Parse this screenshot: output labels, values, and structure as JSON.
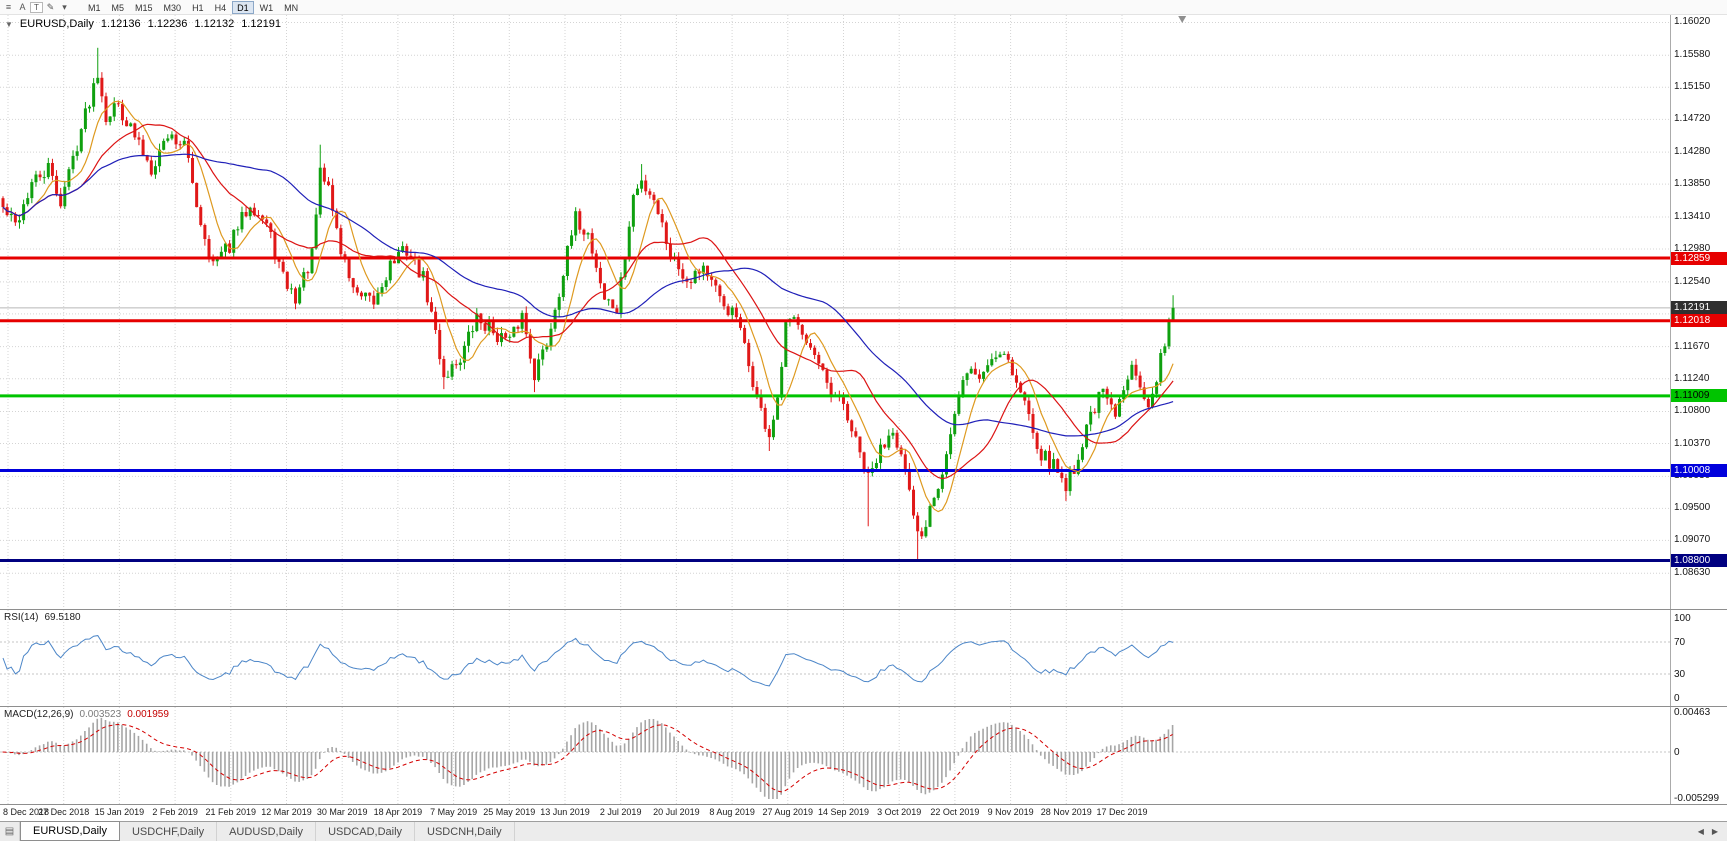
{
  "icons": {
    "menu": "≡",
    "cursor": "A",
    "text": "T",
    "draw": "✎",
    "dropdown": "▾",
    "collapse": "▼",
    "window_list": "▤",
    "tab_scroll_left": "◀",
    "tab_scroll_right": "▶"
  },
  "toolbar": {
    "timeframes": [
      {
        "label": "M1",
        "active": false
      },
      {
        "label": "M5",
        "active": false
      },
      {
        "label": "M15",
        "active": false
      },
      {
        "label": "M30",
        "active": false
      },
      {
        "label": "H1",
        "active": false
      },
      {
        "label": "H4",
        "active": false
      },
      {
        "label": "D1",
        "active": true
      },
      {
        "label": "W1",
        "active": false
      },
      {
        "label": "MN",
        "active": false
      }
    ]
  },
  "chart_data": {
    "type": "candlestick",
    "symbol": "EURUSD,Daily",
    "ohlc_display": {
      "open": "1.12136",
      "high": "1.12236",
      "low": "1.12132",
      "close": "1.12191"
    },
    "y_range": [
      1.0815,
      1.1612
    ],
    "price_axis_ticks": [
      "1.16020",
      "1.15580",
      "1.15150",
      "1.14720",
      "1.14280",
      "1.13850",
      "1.13410",
      "1.12980",
      "1.12540",
      "1.12110",
      "1.11670",
      "1.11240",
      "1.10800",
      "1.10370",
      "1.09930",
      "1.09500",
      "1.09070",
      "1.08630"
    ],
    "date_labels": [
      "8 Dec 2018",
      "27 Dec 2018",
      "15 Jan 2019",
      "2 Feb 2019",
      "21 Feb 2019",
      "12 Mar 2019",
      "30 Mar 2019",
      "18 Apr 2019",
      "7 May 2019",
      "25 May 2019",
      "13 Jun 2019",
      "2 Jul 2019",
      "20 Jul 2019",
      "8 Aug 2019",
      "27 Aug 2019",
      "14 Sep 2019",
      "3 Oct 2019",
      "22 Oct 2019",
      "9 Nov 2019",
      "28 Nov 2019",
      "17 Dec 2019"
    ],
    "levels": [
      {
        "price": 1.12859,
        "label": "1.12859",
        "color": "#E60000",
        "badge_text": "#FFFFFF",
        "thickness": 3
      },
      {
        "price": 1.12018,
        "label": "1.12018",
        "color": "#E60000",
        "badge_text": "#FFFFFF",
        "thickness": 3
      },
      {
        "price": 1.11009,
        "label": "1.11009",
        "color": "#00C400",
        "badge_text": "#000000",
        "thickness": 3
      },
      {
        "price": 1.10008,
        "label": "1.10008",
        "color": "#0000DC",
        "badge_text": "#FFFFFF",
        "thickness": 3
      },
      {
        "price": 1.088,
        "label": "1.08800",
        "color": "#000080",
        "badge_text": "#FFFFFF",
        "thickness": 3
      }
    ],
    "current_price": {
      "price": 1.12191,
      "label": "1.12191",
      "line_color": "#B8B8B8",
      "badge_bg": "#2F2F2F",
      "badge_text": "#FFFFFF"
    },
    "candles": {
      "count": 285,
      "seed": 42,
      "noise": 0.0011,
      "wick": 0.0009,
      "up_color": "#0FA00F",
      "down_color": "#E01818",
      "last_close": 1.12191,
      "close_waypoints": [
        [
          0,
          1.1352
        ],
        [
          3,
          1.133
        ],
        [
          7,
          1.1385
        ],
        [
          11,
          1.1405
        ],
        [
          14,
          1.1362
        ],
        [
          18,
          1.144
        ],
        [
          23,
          1.1538
        ],
        [
          25,
          1.1478
        ],
        [
          28,
          1.1492
        ],
        [
          32,
          1.1448
        ],
        [
          36,
          1.1408
        ],
        [
          40,
          1.1452
        ],
        [
          44,
          1.1438
        ],
        [
          48,
          1.1335
        ],
        [
          51,
          1.1278
        ],
        [
          55,
          1.1302
        ],
        [
          60,
          1.1362
        ],
        [
          64,
          1.133
        ],
        [
          68,
          1.1258
        ],
        [
          71,
          1.1232
        ],
        [
          75,
          1.1288
        ],
        [
          77,
          1.1398
        ],
        [
          79,
          1.1382
        ],
        [
          82,
          1.1295
        ],
        [
          86,
          1.1232
        ],
        [
          90,
          1.1225
        ],
        [
          94,
          1.1278
        ],
        [
          98,
          1.1298
        ],
        [
          102,
          1.1258
        ],
        [
          105,
          1.1185
        ],
        [
          107,
          1.1128
        ],
        [
          111,
          1.1152
        ],
        [
          115,
          1.1205
        ],
        [
          119,
          1.1188
        ],
        [
          123,
          1.1172
        ],
        [
          126,
          1.121
        ],
        [
          129,
          1.1132
        ],
        [
          132,
          1.1172
        ],
        [
          136,
          1.1268
        ],
        [
          139,
          1.1338
        ],
        [
          142,
          1.1318
        ],
        [
          146,
          1.1232
        ],
        [
          149,
          1.1215
        ],
        [
          151,
          1.1288
        ],
        [
          153,
          1.1368
        ],
        [
          155,
          1.1388
        ],
        [
          158,
          1.1368
        ],
        [
          162,
          1.1292
        ],
        [
          166,
          1.1258
        ],
        [
          170,
          1.1276
        ],
        [
          174,
          1.1228
        ],
        [
          178,
          1.1206
        ],
        [
          181,
          1.1142
        ],
        [
          184,
          1.1078
        ],
        [
          186,
          1.1048
        ],
        [
          188,
          1.1088
        ],
        [
          190,
          1.1192
        ],
        [
          193,
          1.1206
        ],
        [
          197,
          1.1152
        ],
        [
          201,
          1.1098
        ],
        [
          204,
          1.1088
        ],
        [
          207,
          1.1038
        ],
        [
          210,
          1.0988
        ],
        [
          213,
          1.1028
        ],
        [
          216,
          1.1062
        ],
        [
          219,
          1.0998
        ],
        [
          221,
          1.0932
        ],
        [
          223,
          1.0908
        ],
        [
          225,
          1.0958
        ],
        [
          228,
          1.1
        ],
        [
          231,
          1.1072
        ],
        [
          234,
          1.1138
        ],
        [
          237,
          1.1125
        ],
        [
          240,
          1.1152
        ],
        [
          243,
          1.1165
        ],
        [
          246,
          1.1118
        ],
        [
          249,
          1.1078
        ],
        [
          252,
          1.1022
        ],
        [
          255,
          1.1008
        ],
        [
          258,
          1.0982
        ],
        [
          261,
          1.1018
        ],
        [
          264,
          1.1078
        ],
        [
          267,
          1.1105
        ],
        [
          270,
          1.1072
        ],
        [
          272,
          1.1108
        ],
        [
          274,
          1.1152
        ],
        [
          276,
          1.1122
        ],
        [
          278,
          1.1082
        ],
        [
          280,
          1.1118
        ],
        [
          282,
          1.1178
        ],
        [
          283,
          1.1205
        ],
        [
          284,
          1.12191
        ]
      ],
      "wick_overrides": [
        {
          "i": 23,
          "high": 1.1568
        },
        {
          "i": 77,
          "high": 1.1438
        },
        {
          "i": 107,
          "low": 1.111
        },
        {
          "i": 129,
          "low": 1.1106
        },
        {
          "i": 155,
          "high": 1.1412
        },
        {
          "i": 186,
          "low": 1.1027
        },
        {
          "i": 210,
          "low": 1.0926
        },
        {
          "i": 222,
          "low": 1.0879
        },
        {
          "i": 258,
          "low": 1.096
        },
        {
          "i": 284,
          "high": 1.1236
        }
      ]
    },
    "moving_averages": [
      {
        "period": 8,
        "color": "#DE9A20"
      },
      {
        "period": 20,
        "color": "#DC1414"
      },
      {
        "period": 50,
        "color": "#2020B8"
      }
    ],
    "rsi": {
      "label": "RSI(14)",
      "current": "69.5180",
      "period": 14,
      "color": "#4C86C8",
      "axis_values": [
        100,
        70,
        30,
        0
      ],
      "guides": [
        70,
        30
      ]
    },
    "macd": {
      "label": "MACD(12,26,9)",
      "current_main": "0.003523",
      "current_signal": "0.001959",
      "axis_top": "0.00463",
      "axis_zero": "0",
      "axis_bottom": "-0.005299",
      "range": [
        -0.005299,
        0.00463
      ],
      "hist_color": "#A6A6A6",
      "signal_color": "#D40000"
    }
  },
  "tabs": {
    "items": [
      {
        "label": "EURUSD,Daily",
        "active": true
      },
      {
        "label": "USDCHF,Daily",
        "active": false
      },
      {
        "label": "AUDUSD,Daily",
        "active": false
      },
      {
        "label": "USDCAD,Daily",
        "active": false
      },
      {
        "label": "USDCNH,Daily",
        "active": false
      }
    ]
  }
}
